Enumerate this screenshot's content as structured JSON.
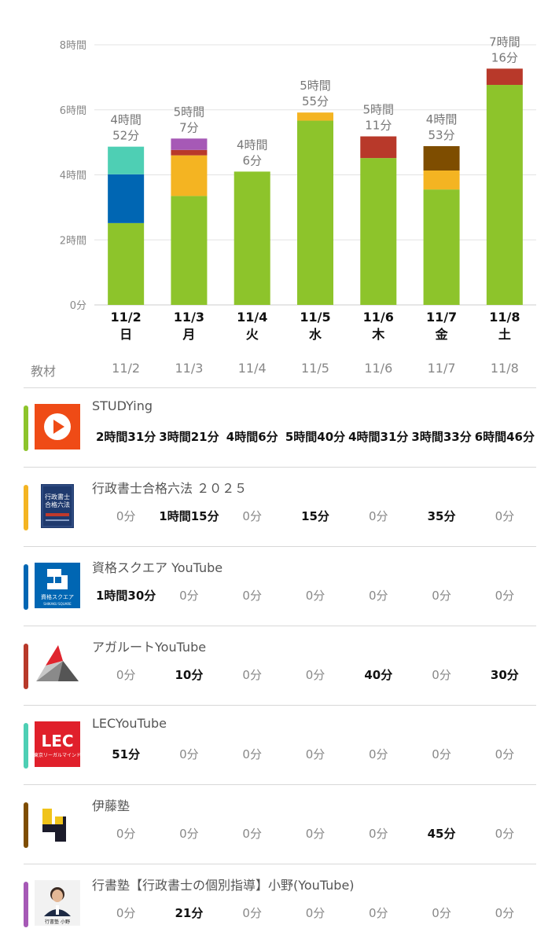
{
  "chart_data": {
    "type": "bar",
    "stacked": true,
    "categories": [
      "11/2",
      "11/3",
      "11/4",
      "11/5",
      "11/6",
      "11/7",
      "11/8"
    ],
    "weekdays": [
      "日",
      "月",
      "火",
      "水",
      "木",
      "金",
      "土"
    ],
    "totals": [
      [
        "4時間",
        "52分"
      ],
      [
        "5時間",
        "7分"
      ],
      [
        "4時間",
        "6分"
      ],
      [
        "5時間",
        "55分"
      ],
      [
        "5時間",
        "11分"
      ],
      [
        "4時間",
        "53分"
      ],
      [
        "7時間",
        "16分"
      ]
    ],
    "y_ticks": [
      "0分",
      "2時間",
      "4時間",
      "6時間",
      "8時間"
    ],
    "ylim_minutes": [
      0,
      480
    ],
    "grid": true,
    "series": [
      {
        "name": "STUDYing",
        "color": "#8dc42b",
        "values": [
          151,
          201,
          246,
          340,
          271,
          213,
          406
        ]
      },
      {
        "name": "行政書士合格六法 ２０２５",
        "color": "#f4b422",
        "values": [
          0,
          75,
          0,
          15,
          0,
          35,
          0
        ]
      },
      {
        "name": "資格スクエア YouTube",
        "color": "#0066b3",
        "values": [
          90,
          0,
          0,
          0,
          0,
          0,
          0
        ]
      },
      {
        "name": "アガルートYouTube",
        "color": "#b8392a",
        "values": [
          0,
          10,
          0,
          0,
          40,
          0,
          30
        ]
      },
      {
        "name": "LECYouTube",
        "color": "#4ecfb4",
        "values": [
          51,
          0,
          0,
          0,
          0,
          0,
          0
        ]
      },
      {
        "name": "伊藤塾",
        "color": "#7e4d00",
        "values": [
          0,
          0,
          0,
          0,
          0,
          45,
          0
        ]
      },
      {
        "name": "行書塾【行政書士の個別指導】小野(YouTube)",
        "color": "#a659b6",
        "values": [
          0,
          21,
          0,
          0,
          0,
          0,
          0
        ]
      }
    ]
  },
  "table": {
    "header_label": "教材",
    "dates": [
      "11/2",
      "11/3",
      "11/4",
      "11/5",
      "11/6",
      "11/7",
      "11/8"
    ],
    "rows": [
      {
        "title": "STUDYing",
        "color": "#8dc42b",
        "icon": "play-icon",
        "values": [
          "2時間31分",
          "3時間21分",
          "4時間6分",
          "5時間40分",
          "4時間31分",
          "3時間33分",
          "6時間46分"
        ],
        "bold": [
          true,
          true,
          true,
          true,
          true,
          true,
          true
        ]
      },
      {
        "title": "行政書士合格六法 ２０２５",
        "color": "#f4b422",
        "icon": "book-cover-icon",
        "values": [
          "0分",
          "1時間15分",
          "0分",
          "15分",
          "0分",
          "35分",
          "0分"
        ],
        "bold": [
          false,
          true,
          false,
          true,
          false,
          true,
          false
        ]
      },
      {
        "title": "資格スクエア YouTube",
        "color": "#0066b3",
        "icon": "shikaku-square-logo",
        "values": [
          "1時間30分",
          "0分",
          "0分",
          "0分",
          "0分",
          "0分",
          "0分"
        ],
        "bold": [
          true,
          false,
          false,
          false,
          false,
          false,
          false
        ]
      },
      {
        "title": "アガルートYouTube",
        "color": "#b8392a",
        "icon": "agaroot-logo",
        "values": [
          "0分",
          "10分",
          "0分",
          "0分",
          "40分",
          "0分",
          "30分"
        ],
        "bold": [
          false,
          true,
          false,
          false,
          true,
          false,
          true
        ]
      },
      {
        "title": "LECYouTube",
        "color": "#4ecfb4",
        "icon": "lec-logo",
        "values": [
          "51分",
          "0分",
          "0分",
          "0分",
          "0分",
          "0分",
          "0分"
        ],
        "bold": [
          true,
          false,
          false,
          false,
          false,
          false,
          false
        ]
      },
      {
        "title": "伊藤塾",
        "color": "#7e4d00",
        "icon": "itojuku-logo",
        "values": [
          "0分",
          "0分",
          "0分",
          "0分",
          "0分",
          "45分",
          "0分"
        ],
        "bold": [
          false,
          false,
          false,
          false,
          false,
          true,
          false
        ]
      },
      {
        "title": "行書塾【行政書士の個別指導】小野(YouTube)",
        "color": "#a659b6",
        "icon": "instructor-photo",
        "values": [
          "0分",
          "21分",
          "0分",
          "0分",
          "0分",
          "0分",
          "0分"
        ],
        "bold": [
          false,
          true,
          false,
          false,
          false,
          false,
          false
        ]
      }
    ]
  },
  "logos": {
    "book_cover_text": "行政書士合格六法",
    "shikaku_text": "資格スクエア",
    "shikaku_sub": "SHIKAKU SQUARE",
    "lec_text": "LEC",
    "lec_sub": "東京リーガルマインド",
    "photo_caption": "行書塾 小野"
  }
}
